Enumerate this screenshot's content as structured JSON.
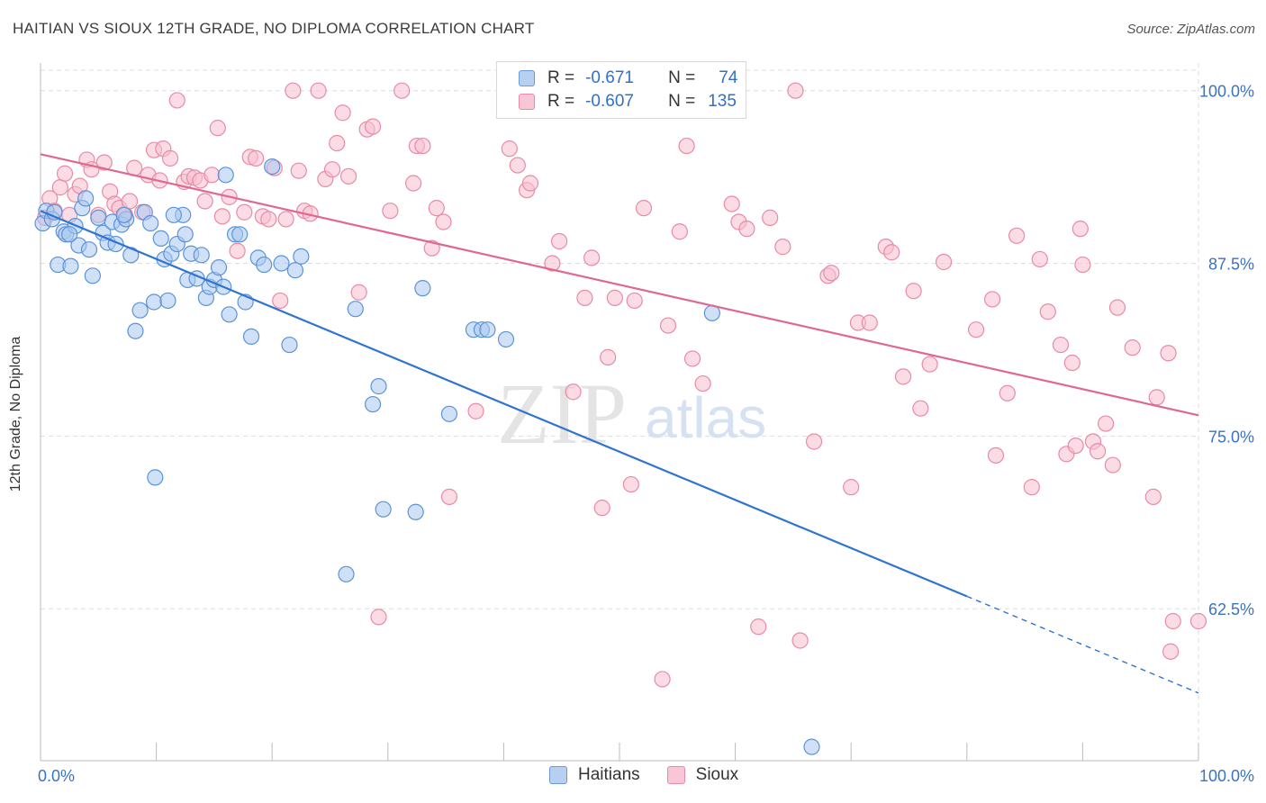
{
  "header": {
    "title": "HAITIAN VS SIOUX 12TH GRADE, NO DIPLOMA CORRELATION CHART",
    "source": "Source: ZipAtlas.com"
  },
  "watermark": {
    "zip": "ZIP",
    "atlas": "atlas"
  },
  "legend": {
    "haitians": {
      "r_label": "R =",
      "r_value": "-0.671",
      "n_label": "N =",
      "n_value": "74"
    },
    "sioux": {
      "r_label": "R =",
      "r_value": "-0.607",
      "n_label": "N =",
      "n_value": "135"
    }
  },
  "bottom_legend": {
    "haitians": "Haitians",
    "sioux": "Sioux"
  },
  "colors": {
    "haitians_fill": "#a9c8f0",
    "haitians_stroke": "#5b93d8",
    "haitians_line": "#2f74d0",
    "sioux_fill": "#f7bfd0",
    "sioux_stroke": "#e88aa8",
    "sioux_line": "#e06890",
    "tick_label": "#3a72c4",
    "grid": "#dddddd"
  },
  "chart_data": {
    "type": "scatter",
    "title": "HAITIAN VS SIOUX 12TH GRADE, NO DIPLOMA CORRELATION CHART",
    "xlabel": "",
    "ylabel": "12th Grade, No Diploma",
    "xlim": [
      0,
      100
    ],
    "ylim": [
      51.5,
      102
    ],
    "x_tick_labels": [
      "0.0%",
      "100.0%"
    ],
    "y_ticks": [
      62.5,
      75.0,
      87.5,
      100.0
    ],
    "y_tick_labels": [
      "62.5%",
      "75.0%",
      "87.5%",
      "100.0%"
    ],
    "grid": "horizontal-dashed",
    "legend_placement": "top-center",
    "series": [
      {
        "name": "Haitians",
        "r": -0.671,
        "n": 74,
        "trend": {
          "x0": 0,
          "y0": 91.3,
          "x1": 80,
          "y1": 63.4,
          "dashed_to_x": 100,
          "dashed_to_y": 56.4
        },
        "points": [
          [
            0.2,
            90.4
          ],
          [
            0.5,
            91.3
          ],
          [
            1.0,
            90.7
          ],
          [
            1.5,
            87.4
          ],
          [
            2.0,
            89.8
          ],
          [
            2.2,
            89.6
          ],
          [
            2.6,
            87.3
          ],
          [
            3.0,
            90.2
          ],
          [
            3.3,
            88.8
          ],
          [
            3.6,
            91.5
          ],
          [
            4.2,
            88.5
          ],
          [
            4.5,
            86.6
          ],
          [
            5.0,
            90.8
          ],
          [
            5.4,
            89.7
          ],
          [
            5.8,
            89.0
          ],
          [
            6.2,
            90.5
          ],
          [
            6.5,
            88.9
          ],
          [
            7.0,
            90.3
          ],
          [
            7.4,
            90.7
          ],
          [
            7.8,
            88.1
          ],
          [
            8.2,
            82.6
          ],
          [
            8.6,
            84.1
          ],
          [
            9.0,
            91.2
          ],
          [
            9.5,
            90.4
          ],
          [
            9.8,
            84.7
          ],
          [
            10.4,
            89.3
          ],
          [
            10.7,
            87.8
          ],
          [
            11.0,
            84.8
          ],
          [
            11.3,
            88.2
          ],
          [
            11.8,
            88.9
          ],
          [
            12.3,
            91.0
          ],
          [
            12.5,
            89.6
          ],
          [
            12.7,
            86.3
          ],
          [
            13.0,
            88.2
          ],
          [
            13.5,
            86.4
          ],
          [
            13.9,
            88.1
          ],
          [
            14.3,
            85.0
          ],
          [
            14.6,
            85.8
          ],
          [
            15.0,
            86.3
          ],
          [
            15.4,
            87.2
          ],
          [
            15.8,
            85.8
          ],
          [
            16.3,
            83.8
          ],
          [
            16.8,
            89.6
          ],
          [
            17.2,
            89.6
          ],
          [
            17.7,
            84.7
          ],
          [
            18.2,
            82.2
          ],
          [
            18.8,
            87.9
          ],
          [
            19.3,
            87.4
          ],
          [
            20.0,
            94.5
          ],
          [
            20.8,
            87.5
          ],
          [
            21.5,
            81.6
          ],
          [
            22.0,
            87.0
          ],
          [
            22.5,
            88.0
          ],
          [
            16.0,
            93.9
          ],
          [
            9.9,
            72.0
          ],
          [
            27.2,
            84.2
          ],
          [
            28.7,
            77.3
          ],
          [
            29.2,
            78.6
          ],
          [
            29.6,
            69.7
          ],
          [
            32.4,
            69.5
          ],
          [
            33.0,
            85.7
          ],
          [
            35.3,
            76.6
          ],
          [
            37.4,
            82.7
          ],
          [
            38.1,
            82.7
          ],
          [
            38.6,
            82.7
          ],
          [
            40.2,
            82.0
          ],
          [
            26.4,
            65.0
          ],
          [
            58.0,
            83.9
          ],
          [
            66.6,
            52.5
          ],
          [
            1.2,
            91.2
          ],
          [
            2.5,
            89.6
          ],
          [
            7.2,
            91.0
          ],
          [
            11.5,
            91.0
          ],
          [
            3.9,
            92.2
          ]
        ]
      },
      {
        "name": "Sioux",
        "r": -0.607,
        "n": 135,
        "trend": {
          "x0": 0,
          "y0": 95.4,
          "x1": 100,
          "y1": 76.5
        },
        "points": [
          [
            0.4,
            90.8
          ],
          [
            0.8,
            92.2
          ],
          [
            1.2,
            91.3
          ],
          [
            1.7,
            93.0
          ],
          [
            2.1,
            94.0
          ],
          [
            2.5,
            91.0
          ],
          [
            3.0,
            92.5
          ],
          [
            3.4,
            93.1
          ],
          [
            4.0,
            95.0
          ],
          [
            4.4,
            94.3
          ],
          [
            5.0,
            91.0
          ],
          [
            5.5,
            94.8
          ],
          [
            6.0,
            92.7
          ],
          [
            6.4,
            91.8
          ],
          [
            6.8,
            91.5
          ],
          [
            7.3,
            91.0
          ],
          [
            7.7,
            92.0
          ],
          [
            8.1,
            94.4
          ],
          [
            8.8,
            91.2
          ],
          [
            9.3,
            93.9
          ],
          [
            9.8,
            95.7
          ],
          [
            10.3,
            93.5
          ],
          [
            10.6,
            95.8
          ],
          [
            11.2,
            95.1
          ],
          [
            11.8,
            99.3
          ],
          [
            12.4,
            93.4
          ],
          [
            12.8,
            93.8
          ],
          [
            13.3,
            93.7
          ],
          [
            13.8,
            93.5
          ],
          [
            14.2,
            92.0
          ],
          [
            14.8,
            93.9
          ],
          [
            15.3,
            97.3
          ],
          [
            15.7,
            90.9
          ],
          [
            16.3,
            92.3
          ],
          [
            17.0,
            88.4
          ],
          [
            17.6,
            91.2
          ],
          [
            18.1,
            95.2
          ],
          [
            18.6,
            95.1
          ],
          [
            19.2,
            90.9
          ],
          [
            19.7,
            90.7
          ],
          [
            20.2,
            94.4
          ],
          [
            20.7,
            84.8
          ],
          [
            21.2,
            90.7
          ],
          [
            21.8,
            100.0
          ],
          [
            22.3,
            94.2
          ],
          [
            22.8,
            91.3
          ],
          [
            23.3,
            91.1
          ],
          [
            24.0,
            100.0
          ],
          [
            24.6,
            93.6
          ],
          [
            25.2,
            94.3
          ],
          [
            25.6,
            96.2
          ],
          [
            26.1,
            98.4
          ],
          [
            26.6,
            93.8
          ],
          [
            27.5,
            85.4
          ],
          [
            28.2,
            97.2
          ],
          [
            28.7,
            97.4
          ],
          [
            29.2,
            61.9
          ],
          [
            30.2,
            91.3
          ],
          [
            31.2,
            100.0
          ],
          [
            32.2,
            93.3
          ],
          [
            32.5,
            96.0
          ],
          [
            33.0,
            96.0
          ],
          [
            33.8,
            88.6
          ],
          [
            34.2,
            91.5
          ],
          [
            34.8,
            90.5
          ],
          [
            35.3,
            70.6
          ],
          [
            37.6,
            76.8
          ],
          [
            40.5,
            95.8
          ],
          [
            41.2,
            94.6
          ],
          [
            42.0,
            92.8
          ],
          [
            42.3,
            93.3
          ],
          [
            44.2,
            87.5
          ],
          [
            44.8,
            89.1
          ],
          [
            46.0,
            78.2
          ],
          [
            47.0,
            85.0
          ],
          [
            47.6,
            87.9
          ],
          [
            48.5,
            69.8
          ],
          [
            49.0,
            80.7
          ],
          [
            49.6,
            85.0
          ],
          [
            51.0,
            71.5
          ],
          [
            51.3,
            84.8
          ],
          [
            52.1,
            91.5
          ],
          [
            53.7,
            57.4
          ],
          [
            54.2,
            83.0
          ],
          [
            55.2,
            89.8
          ],
          [
            55.8,
            96.0
          ],
          [
            56.3,
            80.6
          ],
          [
            57.2,
            78.8
          ],
          [
            59.7,
            91.8
          ],
          [
            60.3,
            90.5
          ],
          [
            61.0,
            90.0
          ],
          [
            62.0,
            61.2
          ],
          [
            63.0,
            90.8
          ],
          [
            64.1,
            88.7
          ],
          [
            65.2,
            100.0
          ],
          [
            65.6,
            60.2
          ],
          [
            66.8,
            74.6
          ],
          [
            68.0,
            86.6
          ],
          [
            68.3,
            86.8
          ],
          [
            70.0,
            71.3
          ],
          [
            70.6,
            83.2
          ],
          [
            71.6,
            83.2
          ],
          [
            73.0,
            88.7
          ],
          [
            73.5,
            88.3
          ],
          [
            74.5,
            79.3
          ],
          [
            75.4,
            85.5
          ],
          [
            76.0,
            77.0
          ],
          [
            76.8,
            80.2
          ],
          [
            78.0,
            87.6
          ],
          [
            80.8,
            82.7
          ],
          [
            82.2,
            84.9
          ],
          [
            82.5,
            73.6
          ],
          [
            83.5,
            78.1
          ],
          [
            84.3,
            89.5
          ],
          [
            85.6,
            71.3
          ],
          [
            86.3,
            87.8
          ],
          [
            87.0,
            84.0
          ],
          [
            88.1,
            81.6
          ],
          [
            88.6,
            73.7
          ],
          [
            89.1,
            80.3
          ],
          [
            89.4,
            74.3
          ],
          [
            89.8,
            90.0
          ],
          [
            90.0,
            87.4
          ],
          [
            90.9,
            74.6
          ],
          [
            91.3,
            73.9
          ],
          [
            92.0,
            75.9
          ],
          [
            92.6,
            72.9
          ],
          [
            93.0,
            84.3
          ],
          [
            94.3,
            81.4
          ],
          [
            96.1,
            70.6
          ],
          [
            96.4,
            77.8
          ],
          [
            97.4,
            81.0
          ],
          [
            97.6,
            59.4
          ],
          [
            97.8,
            61.6
          ],
          [
            100.0,
            61.6
          ]
        ]
      }
    ]
  }
}
